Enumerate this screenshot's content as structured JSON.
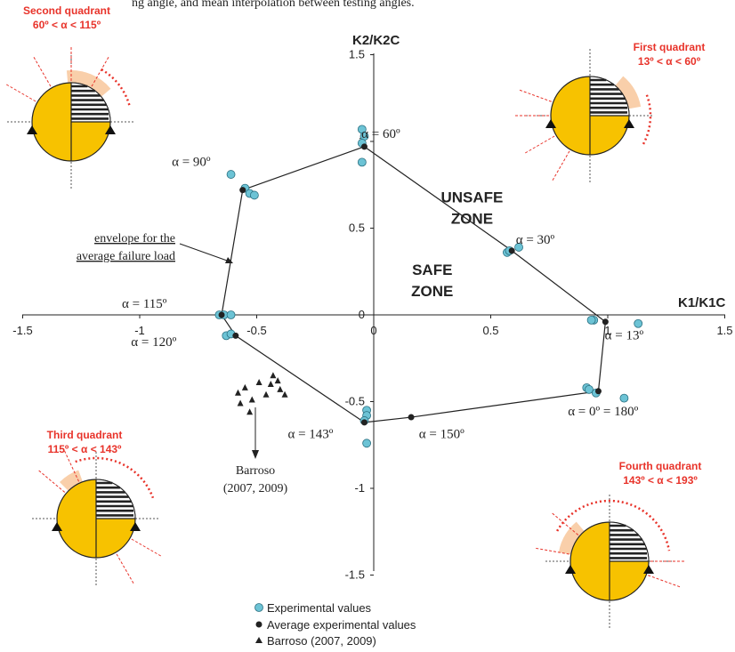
{
  "header_text": "ng angle, and mean interpolation between testing angles.",
  "chart_data": {
    "type": "scatter",
    "xlabel": "K1/K1C",
    "ylabel": "K2/K2C",
    "xlim": [
      -1.5,
      1.5
    ],
    "ylim": [
      -1.5,
      1.5
    ],
    "x_ticks": [
      "-1.5",
      "-1",
      "-0.5",
      "0",
      "0.5",
      "1",
      "1.5"
    ],
    "y_ticks": [
      "1.5",
      "1",
      "0.5",
      "0",
      "-0.5",
      "-1",
      "-1.5"
    ],
    "grid": false,
    "legend_placement": "bottom-center",
    "colors": {
      "experimental": "#6cc3d5",
      "average": "#222222",
      "barroso": "#222222",
      "quadrant_text": "#e8332a",
      "quadrant_fill": "#f7c200",
      "sector_fill": "#f9cfaa"
    },
    "series": [
      {
        "name": "Experimental values",
        "marker": "circle-cyan",
        "points": [
          [
            -0.05,
            1.07
          ],
          [
            -0.04,
            1.03
          ],
          [
            -0.05,
            0.99
          ],
          [
            -0.05,
            0.88
          ],
          [
            -0.61,
            0.81
          ],
          [
            -0.55,
            0.73
          ],
          [
            -0.53,
            0.7
          ],
          [
            -0.51,
            0.69
          ],
          [
            0.57,
            0.36
          ],
          [
            0.58,
            0.37
          ],
          [
            0.62,
            0.39
          ],
          [
            0.94,
            -0.03
          ],
          [
            0.93,
            -0.03
          ],
          [
            1.13,
            -0.05
          ],
          [
            -0.66,
            0.0
          ],
          [
            -0.64,
            0.0
          ],
          [
            -0.61,
            0.0
          ],
          [
            -0.63,
            -0.12
          ],
          [
            -0.61,
            -0.11
          ],
          [
            0.91,
            -0.42
          ],
          [
            0.92,
            -0.43
          ],
          [
            0.95,
            -0.45
          ],
          [
            1.07,
            -0.48
          ],
          [
            -0.03,
            -0.55
          ],
          [
            -0.03,
            -0.58
          ],
          [
            -0.04,
            -0.61
          ],
          [
            -0.03,
            -0.74
          ]
        ]
      },
      {
        "name": "Average experimental values",
        "marker": "circle-black",
        "points": [
          [
            -0.04,
            0.97
          ],
          [
            -0.56,
            0.72
          ],
          [
            0.59,
            0.37
          ],
          [
            0.99,
            -0.04
          ],
          [
            -0.65,
            0.0
          ],
          [
            -0.59,
            -0.12
          ],
          [
            0.96,
            -0.44
          ],
          [
            -0.04,
            -0.62
          ],
          [
            0.16,
            -0.59
          ]
        ]
      },
      {
        "name": "Barroso (2007, 2009)",
        "marker": "triangle-black",
        "points": [
          [
            -0.58,
            -0.45
          ],
          [
            -0.55,
            -0.42
          ],
          [
            -0.52,
            -0.49
          ],
          [
            -0.57,
            -0.51
          ],
          [
            -0.49,
            -0.39
          ],
          [
            -0.44,
            -0.4
          ],
          [
            -0.43,
            -0.35
          ],
          [
            -0.41,
            -0.38
          ],
          [
            -0.4,
            -0.43
          ],
          [
            -0.53,
            -0.56
          ],
          [
            -0.46,
            -0.46
          ],
          [
            -0.38,
            -0.46
          ]
        ]
      }
    ],
    "envelope": {
      "name": "envelope for the average failure load",
      "points": [
        [
          -0.04,
          0.97
        ],
        [
          0.59,
          0.37
        ],
        [
          0.99,
          -0.04
        ],
        [
          0.96,
          -0.44
        ],
        [
          0.16,
          -0.59
        ],
        [
          -0.04,
          -0.62
        ],
        [
          -0.59,
          -0.12
        ],
        [
          -0.65,
          0.0
        ],
        [
          -0.56,
          0.72
        ],
        [
          -0.04,
          0.97
        ]
      ]
    },
    "angle_labels": [
      {
        "text": "α = 60º",
        "anchor": [
          0.03,
          1.02
        ]
      },
      {
        "text": "α = 90º",
        "anchor": [
          -0.78,
          0.86
        ]
      },
      {
        "text": "α = 30º",
        "anchor": [
          0.69,
          0.41
        ]
      },
      {
        "text": "α = 115º",
        "anchor": [
          -0.98,
          0.04
        ]
      },
      {
        "text": "α = 13º",
        "anchor": [
          1.07,
          -0.14
        ]
      },
      {
        "text": "α = 120º",
        "anchor": [
          -0.94,
          -0.18
        ]
      },
      {
        "text": "α = 0º = 180º",
        "anchor": [
          0.98,
          -0.58
        ]
      },
      {
        "text": "α = 143º",
        "anchor": [
          -0.27,
          -0.71
        ]
      },
      {
        "text": "α = 150º",
        "anchor": [
          0.29,
          -0.71
        ]
      }
    ],
    "zones": [
      {
        "lines": [
          "UNSAFE",
          "ZONE"
        ],
        "anchor": [
          0.42,
          0.65
        ]
      },
      {
        "lines": [
          "SAFE",
          "ZONE"
        ],
        "anchor": [
          0.25,
          0.23
        ]
      }
    ],
    "annotations": {
      "envelope_note": [
        "envelope for the",
        "average failure load"
      ],
      "barroso_note": [
        "Barroso",
        "(2007, 2009)"
      ]
    },
    "quadrants": [
      {
        "title": "Second quadrant",
        "range": "60º < α < 115º"
      },
      {
        "title": "First quadrant",
        "range": "13º < α < 60º"
      },
      {
        "title": "Third quadrant",
        "range": "115º < α < 143º"
      },
      {
        "title": "Fourth quadrant",
        "range": "143º < α <  193º"
      }
    ]
  }
}
